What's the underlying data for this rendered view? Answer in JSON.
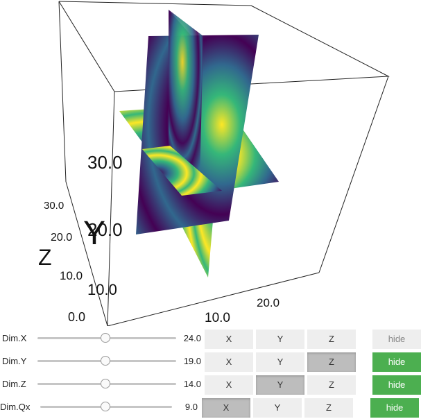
{
  "scene": {
    "axis_labels": {
      "y": "Y",
      "z": "Z"
    },
    "tick_labels": [
      "30.0",
      "20.0",
      "10.0",
      "0.0",
      "20.0",
      "10.0",
      "30.0",
      "20.0",
      "10.0"
    ],
    "colormap": [
      "#440154",
      "#31688e",
      "#35b779",
      "#fde725"
    ]
  },
  "controls": [
    {
      "label": "Dim.X",
      "value": "24.0",
      "slider_fraction": 0.5,
      "buttons": [
        "X",
        "Y",
        "Z"
      ],
      "selected": "none",
      "hide_label": "hide",
      "hide_state": "inactive"
    },
    {
      "label": "Dim.Y",
      "value": "19.0",
      "slider_fraction": 0.5,
      "buttons": [
        "X",
        "Y",
        "Z"
      ],
      "selected": "Z",
      "hide_label": "hide",
      "hide_state": "active"
    },
    {
      "label": "Dim.Z",
      "value": "14.0",
      "slider_fraction": 0.5,
      "buttons": [
        "X",
        "Y",
        "Z"
      ],
      "selected": "Y",
      "hide_label": "hide",
      "hide_state": "active"
    },
    {
      "label": "Dim.Qx",
      "value": "9.0",
      "slider_fraction": 0.5,
      "buttons": [
        "X",
        "Y",
        "Z"
      ],
      "selected": "X",
      "hide_label": "hide",
      "hide_state": "active"
    }
  ]
}
